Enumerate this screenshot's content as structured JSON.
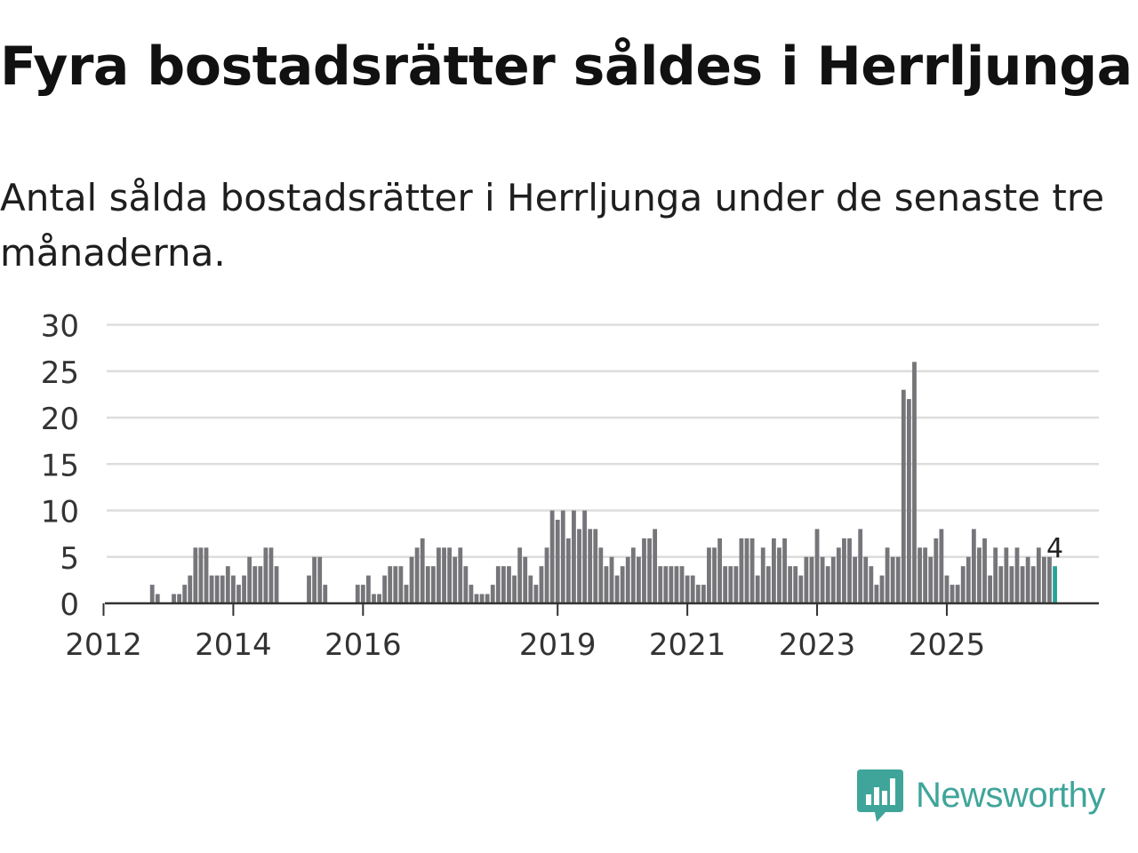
{
  "header": {
    "title": "Fyra bostadsrätter såldes i Herrljunga",
    "subtitle": "Antal sålda bostadsrätter i Herrljunga under de senaste tre månaderna."
  },
  "brand": {
    "name": "Newsworthy",
    "logo_icon": "newsworthy-chart-bubble-icon",
    "color": "#3fa59a"
  },
  "chart_data": {
    "type": "bar",
    "title": "Fyra bostadsrätter såldes i Herrljunga",
    "subtitle": "Antal sålda bostadsrätter i Herrljunga under de senaste tre månaderna.",
    "xlabel": "",
    "ylabel": "",
    "ylim": [
      0,
      30
    ],
    "yticks": [
      "0",
      "5",
      "10",
      "15",
      "20",
      "25",
      "30"
    ],
    "xticks": [
      {
        "label": "2012",
        "index": 0
      },
      {
        "label": "2014",
        "index": 24
      },
      {
        "label": "2016",
        "index": 48
      },
      {
        "label": "2019",
        "index": 84
      },
      {
        "label": "2021",
        "index": 108
      },
      {
        "label": "2023",
        "index": 132
      },
      {
        "label": "2025",
        "index": 156
      }
    ],
    "start_month": "2012-01",
    "leading_empty_months": 9,
    "values": [
      2,
      1,
      0,
      0,
      1,
      1,
      2,
      3,
      6,
      6,
      6,
      3,
      3,
      3,
      4,
      3,
      2,
      3,
      5,
      4,
      4,
      6,
      6,
      4,
      0,
      0,
      0,
      0,
      0,
      3,
      5,
      5,
      2,
      0,
      0,
      0,
      0,
      0,
      2,
      2,
      3,
      1,
      1,
      3,
      4,
      4,
      4,
      2,
      5,
      6,
      7,
      4,
      4,
      6,
      6,
      6,
      5,
      6,
      4,
      2,
      1,
      1,
      1,
      2,
      4,
      4,
      4,
      3,
      6,
      5,
      3,
      2,
      4,
      6,
      10,
      9,
      10,
      7,
      10,
      8,
      10,
      8,
      8,
      6,
      4,
      5,
      3,
      4,
      5,
      6,
      5,
      7,
      7,
      8,
      4,
      4,
      4,
      4,
      4,
      3,
      3,
      2,
      2,
      6,
      6,
      7,
      4,
      4,
      4,
      7,
      7,
      7,
      3,
      6,
      4,
      7,
      6,
      7,
      4,
      4,
      3,
      5,
      5,
      8,
      5,
      4,
      5,
      6,
      7,
      7,
      5,
      8,
      5,
      4,
      2,
      3,
      6,
      5,
      5,
      23,
      22,
      26,
      6,
      6,
      5,
      7,
      8,
      3,
      2,
      2,
      4,
      5,
      8,
      6,
      7,
      3,
      6,
      4,
      6,
      4,
      6,
      4,
      5,
      4,
      6,
      5,
      5,
      4
    ],
    "highlight": {
      "index": 167,
      "label": "4",
      "color": "#2aa198"
    },
    "bar_color": "#76767a",
    "gridline_color": "#dddddd",
    "axis_color": "#333333"
  }
}
